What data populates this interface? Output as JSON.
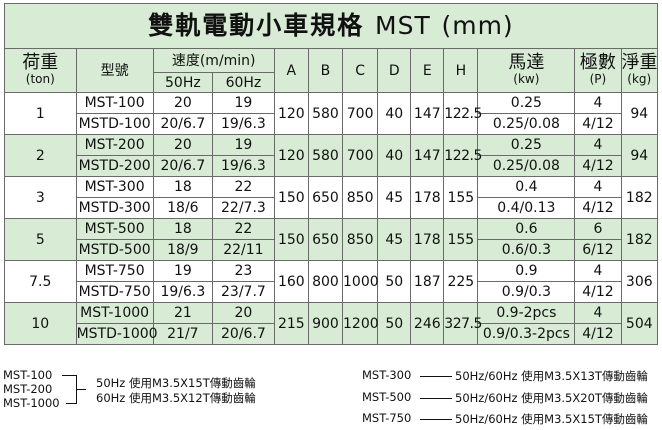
{
  "title": {
    "main": "雙軌電動小車規格",
    "model": "MST",
    "unit": "(mm)"
  },
  "headers": {
    "load": "荷重",
    "load_unit": "(ton)",
    "model": "型號",
    "speed": "速度(m/min)",
    "hz50": "50Hz",
    "hz60": "60Hz",
    "a": "A",
    "b": "B",
    "c": "C",
    "d": "D",
    "e": "E",
    "h": "H",
    "motor": "馬達",
    "motor_unit": "(kw)",
    "poles": "極數",
    "poles_unit": "(P)",
    "weight": "淨重",
    "weight_unit": "(kg)"
  },
  "rows": [
    {
      "load": "1",
      "a": "120",
      "b": "580",
      "c": "700",
      "d": "40",
      "e": "147",
      "h": "122.5",
      "weight": "94",
      "sub": [
        {
          "model": "MST-100",
          "s50": "20",
          "s60": "19",
          "motor": "0.25",
          "poles": "4"
        },
        {
          "model": "MSTD-100",
          "s50": "20/6.7",
          "s60": "19/6.3",
          "motor": "0.25/0.08",
          "poles": "4/12"
        }
      ]
    },
    {
      "load": "2",
      "a": "120",
      "b": "580",
      "c": "700",
      "d": "40",
      "e": "147",
      "h": "122.5",
      "weight": "94",
      "sub": [
        {
          "model": "MST-200",
          "s50": "20",
          "s60": "19",
          "motor": "0.25",
          "poles": "4"
        },
        {
          "model": "MSTD-200",
          "s50": "20/6.7",
          "s60": "19/6.3",
          "motor": "0.25/0.08",
          "poles": "4/12"
        }
      ]
    },
    {
      "load": "3",
      "a": "150",
      "b": "650",
      "c": "850",
      "d": "45",
      "e": "178",
      "h": "155",
      "weight": "182",
      "sub": [
        {
          "model": "MST-300",
          "s50": "18",
          "s60": "22",
          "motor": "0.4",
          "poles": "4"
        },
        {
          "model": "MSTD-300",
          "s50": "18/6",
          "s60": "22/7.3",
          "motor": "0.4/0.13",
          "poles": "4/12"
        }
      ]
    },
    {
      "load": "5",
      "a": "150",
      "b": "650",
      "c": "850",
      "d": "45",
      "e": "178",
      "h": "155",
      "weight": "182",
      "sub": [
        {
          "model": "MST-500",
          "s50": "18",
          "s60": "22",
          "motor": "0.6",
          "poles": "6"
        },
        {
          "model": "MSTD-500",
          "s50": "18/9",
          "s60": "22/11",
          "motor": "0.6/0.3",
          "poles": "6/12"
        }
      ]
    },
    {
      "load": "7.5",
      "a": "160",
      "b": "800",
      "c": "1000",
      "d": "50",
      "e": "187",
      "h": "225",
      "weight": "306",
      "sub": [
        {
          "model": "MST-750",
          "s50": "19",
          "s60": "23",
          "motor": "0.9",
          "poles": "4"
        },
        {
          "model": "MSTD-750",
          "s50": "19/6.3",
          "s60": "23/7.7",
          "motor": "0.9/0.3",
          "poles": "4/12"
        }
      ]
    },
    {
      "load": "10",
      "a": "215",
      "b": "900",
      "c": "1200",
      "d": "50",
      "e": "246",
      "h": "327.5",
      "weight": "504",
      "sub": [
        {
          "model": "MST-1000",
          "s50": "21",
          "s60": "20",
          "motor": "0.9-2pcs",
          "poles": "4"
        },
        {
          "model": "MSTD-1000",
          "s50": "21/7",
          "s60": "20/6.7",
          "motor": "0.9/0.3-2pcs",
          "poles": "4/12"
        }
      ]
    }
  ],
  "notes": {
    "left_models": [
      "MST-100",
      "MST-200",
      "MST-1000"
    ],
    "left_text_1": "50Hz 使用M3.5X15T傳動齒輪",
    "left_text_2": "60Hz 使用M3.5X12T傳動齒輪",
    "right": [
      {
        "model": "MST-300",
        "text": "50Hz/60Hz 使用M3.5X13T傳動齒輪"
      },
      {
        "model": "MST-500",
        "text": "50Hz/60Hz 使用M3.5X20T傳動齒輪"
      },
      {
        "model": "MST-750",
        "text": "50Hz/60Hz 使用M3.5X15T傳動齒輪"
      }
    ]
  }
}
